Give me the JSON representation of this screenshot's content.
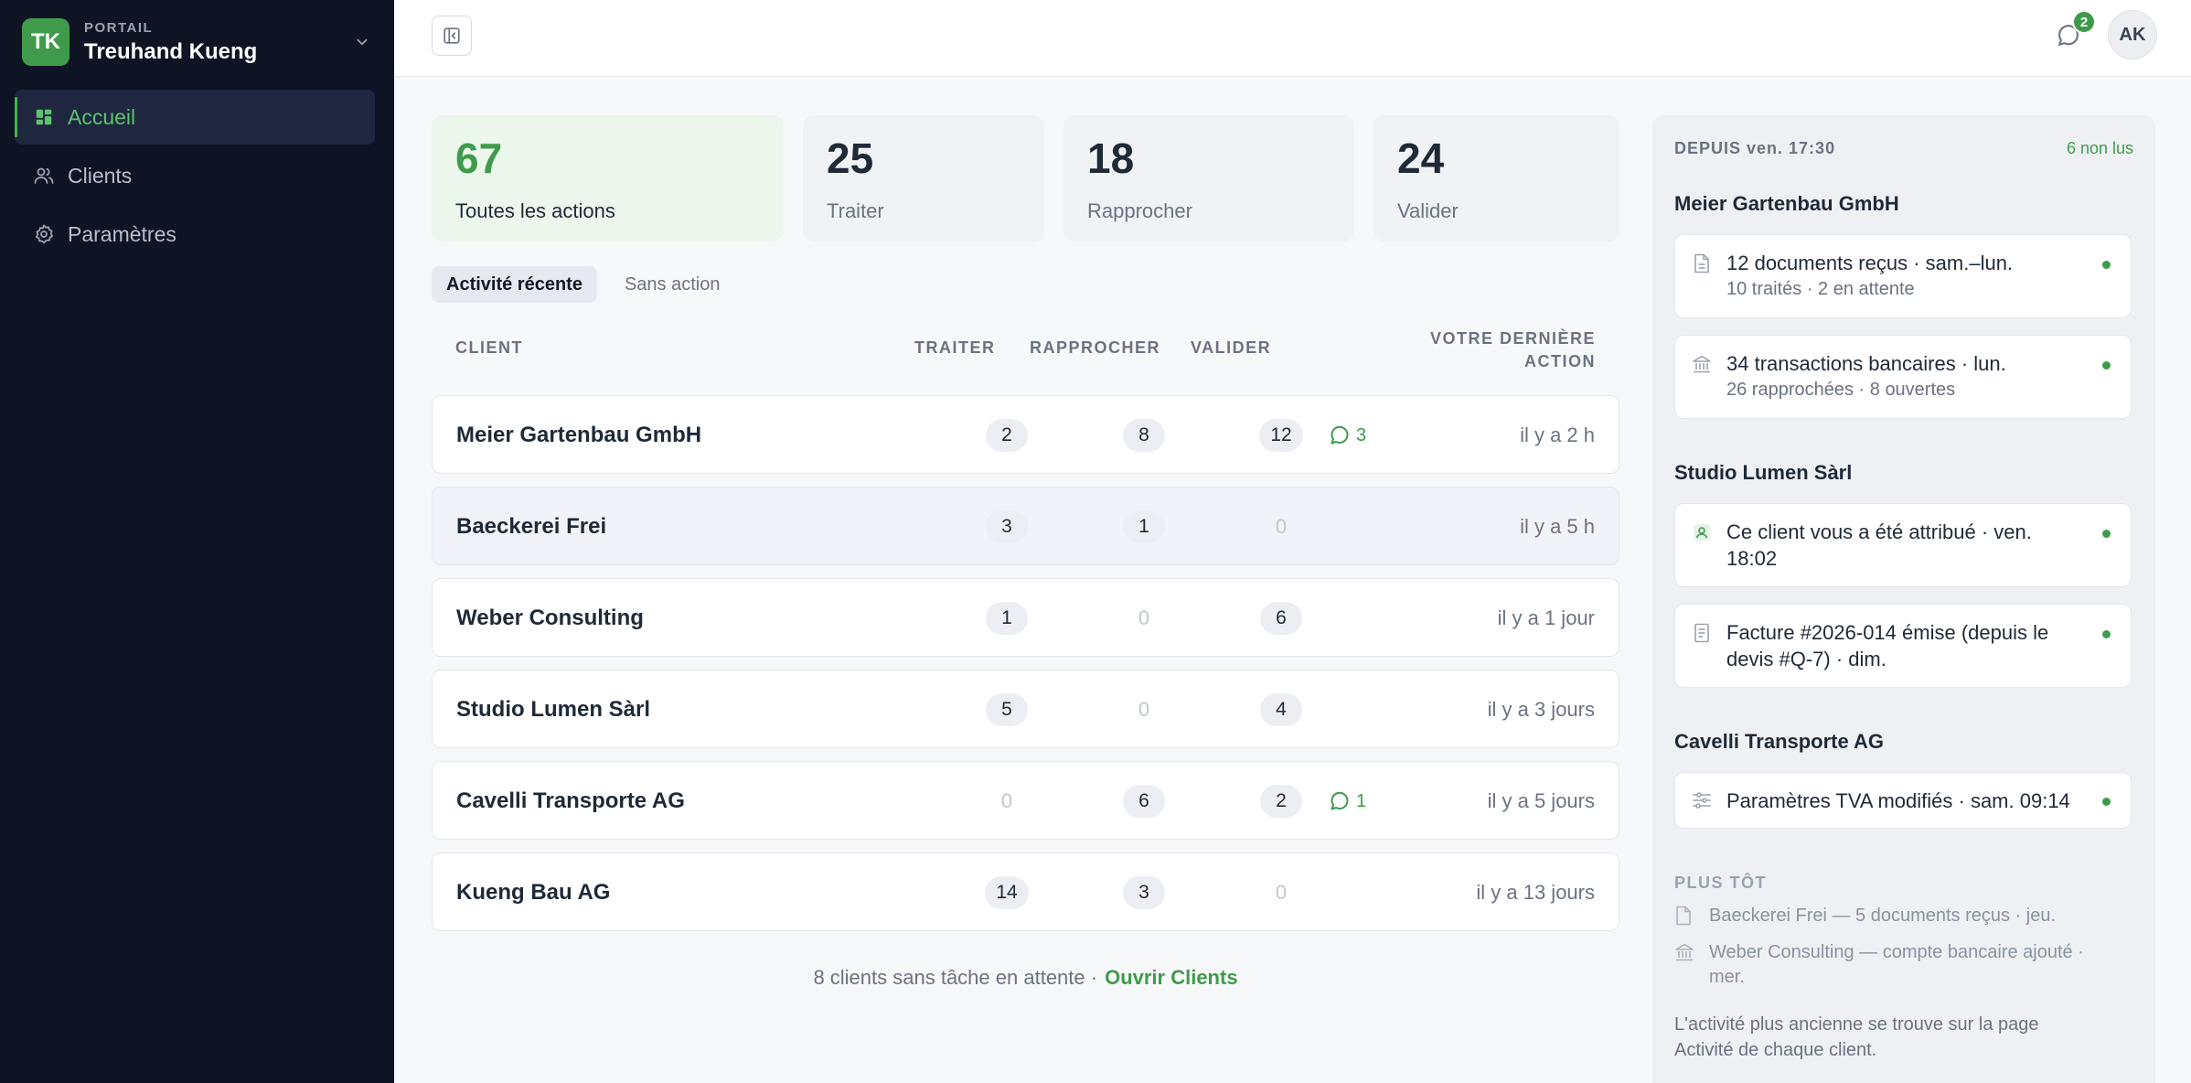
{
  "sidebar": {
    "org": {
      "initials": "TK",
      "kicker": "PORTAIL",
      "name": "Treuhand Kueng"
    },
    "items": [
      {
        "label": "Accueil",
        "icon": "dashboard-icon",
        "active": true
      },
      {
        "label": "Clients",
        "icon": "users-icon"
      },
      {
        "label": "Paramètres",
        "icon": "gear-icon"
      }
    ]
  },
  "topbar": {
    "messages_count": "2",
    "avatar_initials": "AK"
  },
  "stats": [
    {
      "value": "67",
      "label": "Toutes les actions"
    },
    {
      "value": "25",
      "label": "Traiter"
    },
    {
      "value": "18",
      "label": "Rapprocher"
    },
    {
      "value": "24",
      "label": "Valider"
    }
  ],
  "tabs": [
    {
      "label": "Activité récente"
    },
    {
      "label": "Sans action"
    }
  ],
  "table": {
    "headers": {
      "client": "CLIENT",
      "traiter": "TRAITER",
      "rapprocher": "RAPPROCHER",
      "valider": "VALIDER",
      "last_1": "VOTRE DERNIÈRE",
      "last_2": "ACTION"
    },
    "rows": [
      {
        "name": "Meier Gartenbau GmbH",
        "traiter": "2",
        "rapprocher": "8",
        "valider": "12",
        "comments": "3",
        "last": "il y a 2 h"
      },
      {
        "name": "Baeckerei Frei",
        "traiter": "3",
        "rapprocher": "1",
        "valider": "0",
        "comments": "",
        "last": "il y a 5 h"
      },
      {
        "name": "Weber Consulting",
        "traiter": "1",
        "rapprocher": "0",
        "valider": "6",
        "comments": "",
        "last": "il y a 1 jour"
      },
      {
        "name": "Studio Lumen Sàrl",
        "traiter": "5",
        "rapprocher": "0",
        "valider": "4",
        "comments": "",
        "last": "il y a 3 jours"
      },
      {
        "name": "Cavelli Transporte AG",
        "traiter": "0",
        "rapprocher": "6",
        "valider": "2",
        "comments": "1",
        "last": "il y a 5 jours"
      },
      {
        "name": "Kueng Bau AG",
        "traiter": "14",
        "rapprocher": "3",
        "valider": "0",
        "comments": "",
        "last": "il y a 13 jours"
      }
    ],
    "footer_text": "8 clients sans tâche en attente ·",
    "footer_link": "Ouvrir Clients"
  },
  "panel": {
    "since": "DEPUIS ven. 17:30",
    "unread": "6 non lus",
    "groups": [
      {
        "title": "Meier Gartenbau GmbH",
        "items": [
          {
            "icon": "document-icon",
            "title": "12 documents reçus · sam.–lun.",
            "sub": "10 traités · 2 en attente"
          },
          {
            "icon": "bank-icon",
            "title": "34 transactions bancaires · lun.",
            "sub": "26 rapprochées · 8 ouvertes"
          }
        ]
      },
      {
        "title": "Studio Lumen Sàrl",
        "items": [
          {
            "icon": "user-assign-icon",
            "title_1": "Ce client vous a été attribué · ven.",
            "title_2": "18:02"
          },
          {
            "icon": "invoice-icon",
            "title_1": "Facture #2026-014 émise (depuis le",
            "title_2": "devis #Q-7) · dim."
          }
        ]
      },
      {
        "title": "Cavelli Transporte AG",
        "items": [
          {
            "icon": "sliders-icon",
            "title": "Paramètres TVA modifiés · sam. 09:14"
          }
        ]
      }
    ],
    "earlier_title": "PLUS TÔT",
    "earlier": [
      {
        "icon": "document-icon",
        "text": "Baeckerei Frei — 5 documents reçus · jeu."
      },
      {
        "icon": "bank-icon",
        "text_1": "Weber Consulting — compte bancaire ajouté ·",
        "text_2": "mer."
      }
    ],
    "note_1": "L'activité plus ancienne se trouve sur la page",
    "note_2": "Activité de chaque client."
  }
}
